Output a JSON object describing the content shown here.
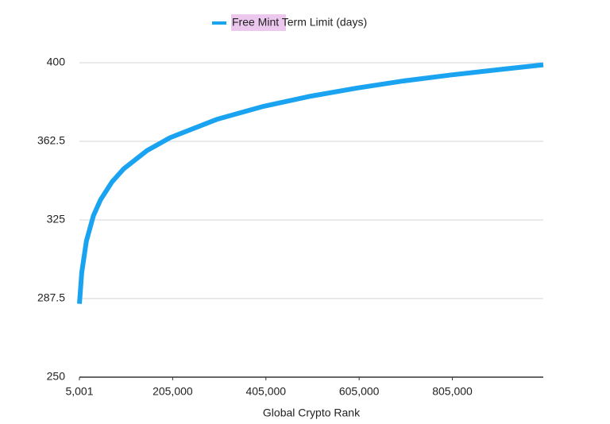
{
  "chart_data": {
    "type": "line",
    "x_label": "Global Crypto Rank",
    "x": [
      5001,
      10000,
      20000,
      35000,
      50000,
      75000,
      100000,
      150000,
      200000,
      300000,
      400000,
      500000,
      600000,
      700000,
      800000,
      900000,
      1000000
    ],
    "series": [
      {
        "name": "Free Mint Term Limit (days)",
        "color": "#1aa3f0",
        "values": [
          285,
          300,
          315,
          327,
          334.5,
          343.2,
          349.4,
          358.1,
          364.3,
          373,
          379.2,
          384,
          387.9,
          391.3,
          394.1,
          396.6,
          399
        ]
      }
    ],
    "xlim": [
      5001,
      1000000
    ],
    "xticks": [
      {
        "value": 5001,
        "label": "5,001"
      },
      {
        "value": 205000,
        "label": "205,000"
      },
      {
        "value": 405000,
        "label": "405,000"
      },
      {
        "value": 605000,
        "label": "605,000"
      },
      {
        "value": 805000,
        "label": "805,000"
      }
    ],
    "ylim": [
      250,
      400
    ],
    "yticks": [
      250,
      287.5,
      325,
      362.5,
      400
    ],
    "grid": true,
    "legend": "top"
  }
}
